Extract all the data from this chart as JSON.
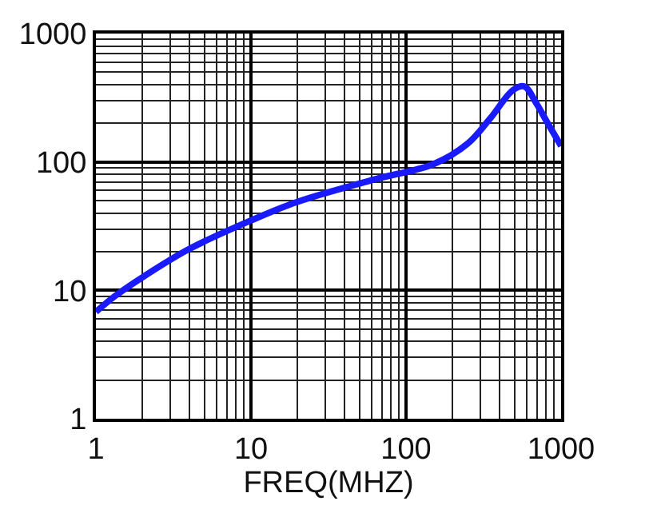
{
  "chart_data": {
    "type": "line",
    "xlabel": "FREQ(MHZ)",
    "log": "xy",
    "grid": true,
    "legend": false,
    "marker": "none",
    "line_style": "solid",
    "xlim": [
      1,
      1000
    ],
    "ylim": [
      1,
      1000
    ],
    "xticks": [
      1,
      10,
      100,
      1000
    ],
    "yticks": [
      1,
      10,
      100,
      1000
    ],
    "series": [
      {
        "color": "#1a1aff",
        "x": [
          1,
          1.34,
          2.05,
          4,
          10,
          20,
          65,
          150,
          250,
          350,
          490,
          580,
          690,
          820,
          1000
        ],
        "values": [
          6.8,
          9.1,
          12.9,
          21,
          35,
          49,
          74,
          96,
          139,
          219,
          363,
          387,
          288,
          200,
          133
        ]
      }
    ]
  }
}
